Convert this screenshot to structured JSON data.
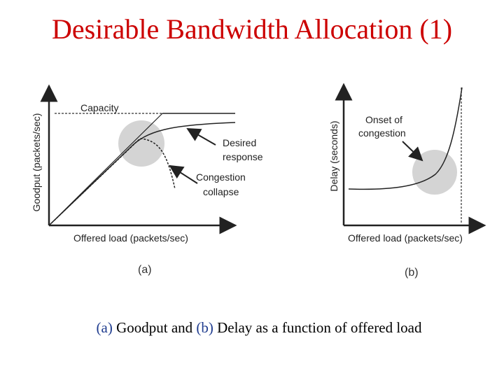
{
  "slide": {
    "title": "Desirable Bandwidth Allocation (1)",
    "caption": {
      "a_tag": "(a)",
      "a_text": " Goodput and ",
      "b_tag": "(b)",
      "b_text": " Delay as a function of offered load"
    }
  },
  "panel_a": {
    "ylabel": "Goodput (packets/sec)",
    "xlabel": "Offered load (packets/sec)",
    "capacity_label": "Capacity",
    "desired_label_1": "Desired",
    "desired_label_2": "response",
    "collapse_label_1": "Congestion",
    "collapse_label_2": "collapse",
    "sublabel": "(a)"
  },
  "panel_b": {
    "ylabel": "Delay (seconds)",
    "xlabel": "Offered load (packets/sec)",
    "onset_label_1": "Onset of",
    "onset_label_2": "congestion",
    "sublabel": "(b)"
  },
  "colors": {
    "title": "#cc0000",
    "caption_tag": "#1f3c8f",
    "highlight_circle": "#d4d4d4",
    "axis": "#222222"
  }
}
